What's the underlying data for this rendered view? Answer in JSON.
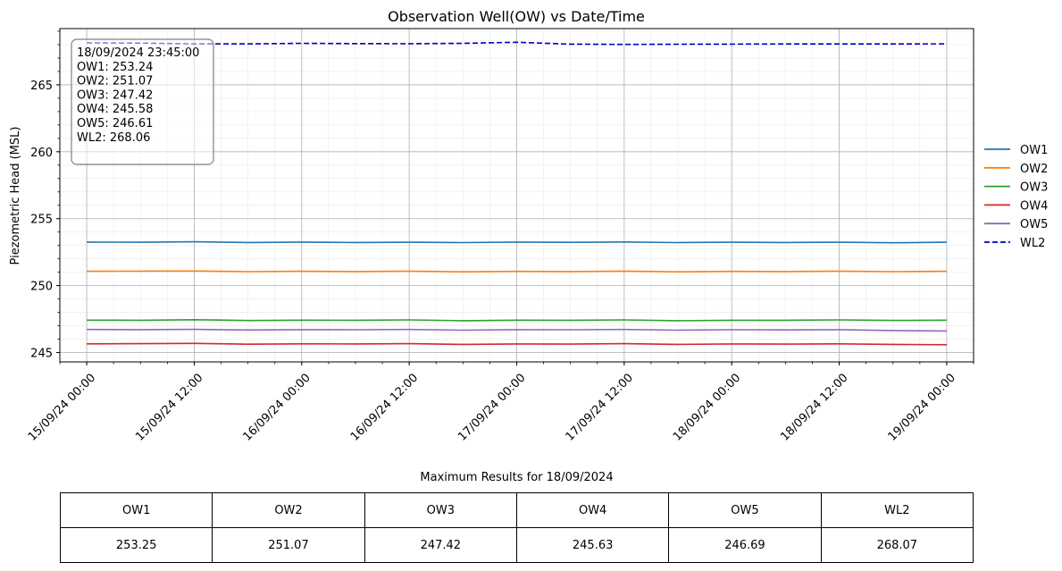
{
  "chart_data": {
    "type": "line",
    "title": "Observation Well(OW) vs Date/Time",
    "xlabel": "",
    "ylabel": "Piezometric Head (MSL)",
    "x_range": [
      "2024-09-14T21:00",
      "2024-09-19T03:00"
    ],
    "ylim": [
      244.3,
      269.2
    ],
    "yticks": [
      245,
      250,
      255,
      260,
      265
    ],
    "xticks": [
      {
        "t": "2024-09-15T00:00",
        "label": "15/09/24 00:00"
      },
      {
        "t": "2024-09-15T12:00",
        "label": "15/09/24 12:00"
      },
      {
        "t": "2024-09-16T00:00",
        "label": "16/09/24 00:00"
      },
      {
        "t": "2024-09-16T12:00",
        "label": "16/09/24 12:00"
      },
      {
        "t": "2024-09-17T00:00",
        "label": "17/09/24 00:00"
      },
      {
        "t": "2024-09-17T12:00",
        "label": "17/09/24 12:00"
      },
      {
        "t": "2024-09-18T00:00",
        "label": "18/09/24 00:00"
      },
      {
        "t": "2024-09-18T12:00",
        "label": "18/09/24 12:00"
      },
      {
        "t": "2024-09-19T00:00",
        "label": "19/09/24 00:00"
      }
    ],
    "grid": true,
    "legend_position": "right-center",
    "x": [
      "2024-09-15T00:00",
      "2024-09-15T06:00",
      "2024-09-15T12:00",
      "2024-09-15T18:00",
      "2024-09-16T00:00",
      "2024-09-16T06:00",
      "2024-09-16T12:00",
      "2024-09-16T18:00",
      "2024-09-17T00:00",
      "2024-09-17T06:00",
      "2024-09-17T12:00",
      "2024-09-17T18:00",
      "2024-09-18T00:00",
      "2024-09-18T06:00",
      "2024-09-18T12:00",
      "2024-09-18T18:00",
      "2024-09-19T00:00"
    ],
    "series": [
      {
        "name": "OW1",
        "color": "#1f77b4",
        "dashed": false,
        "values": [
          253.25,
          253.24,
          253.27,
          253.22,
          253.25,
          253.22,
          253.24,
          253.21,
          253.25,
          253.23,
          253.26,
          253.21,
          253.24,
          253.22,
          253.24,
          253.2,
          253.24
        ]
      },
      {
        "name": "OW2",
        "color": "#ff7f0e",
        "dashed": false,
        "values": [
          251.07,
          251.08,
          251.09,
          251.04,
          251.07,
          251.05,
          251.08,
          251.03,
          251.06,
          251.05,
          251.08,
          251.03,
          251.06,
          251.05,
          251.08,
          251.04,
          251.07
        ]
      },
      {
        "name": "OW3",
        "color": "#2ca02c",
        "dashed": false,
        "values": [
          247.42,
          247.41,
          247.45,
          247.39,
          247.42,
          247.41,
          247.44,
          247.38,
          247.42,
          247.41,
          247.44,
          247.38,
          247.41,
          247.41,
          247.44,
          247.4,
          247.42
        ]
      },
      {
        "name": "OW4",
        "color": "#d62728",
        "dashed": false,
        "values": [
          245.65,
          245.66,
          245.68,
          245.62,
          245.65,
          245.64,
          245.66,
          245.61,
          245.64,
          245.63,
          245.66,
          245.61,
          245.64,
          245.63,
          245.65,
          245.61,
          245.58
        ]
      },
      {
        "name": "OW5",
        "color": "#9467bd",
        "dashed": false,
        "values": [
          246.72,
          246.71,
          246.73,
          246.68,
          246.71,
          246.7,
          246.72,
          246.67,
          246.71,
          246.7,
          246.72,
          246.67,
          246.7,
          246.69,
          246.71,
          246.64,
          246.61
        ]
      },
      {
        "name": "WL2",
        "color": "#0000cd",
        "dashed": true,
        "values": [
          268.13,
          268.12,
          268.06,
          268.06,
          268.1,
          268.08,
          268.07,
          268.1,
          268.18,
          268.04,
          268.02,
          268.03,
          268.04,
          268.05,
          268.05,
          268.05,
          268.06
        ]
      }
    ],
    "annotation": {
      "lines": [
        "18/09/2024 23:45:00",
        "OW1: 253.24",
        "OW2: 251.07",
        "OW3: 247.42",
        "OW4: 245.58",
        "OW5: 246.61",
        "WL2: 268.06"
      ]
    }
  },
  "results_table": {
    "title": "Maximum Results for 18/09/2024",
    "headers": [
      "OW1",
      "OW2",
      "OW3",
      "OW4",
      "OW5",
      "WL2"
    ],
    "values": [
      "253.25",
      "251.07",
      "247.42",
      "245.63",
      "246.69",
      "268.07"
    ]
  }
}
